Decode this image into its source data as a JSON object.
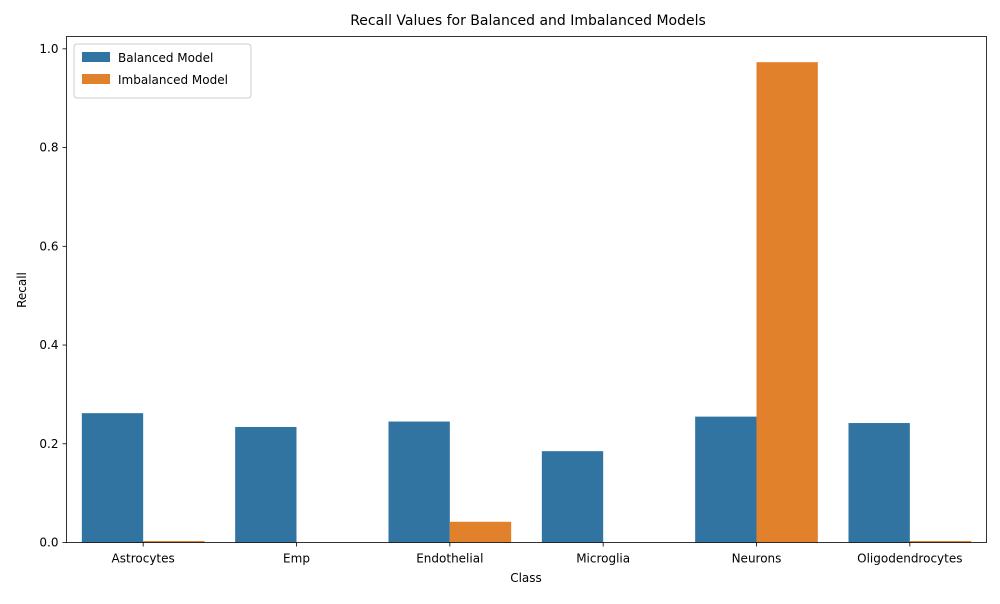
{
  "chart_data": {
    "type": "bar",
    "title": "Recall Values for Balanced and Imbalanced Models",
    "xlabel": "Class",
    "ylabel": "Recall",
    "categories": [
      "Astrocytes",
      "Emp",
      "Endothelial",
      "Microglia",
      "Neurons",
      "Oligodendrocytes"
    ],
    "series": [
      {
        "name": "Balanced Model",
        "color": "#3274a1",
        "values": [
          0.262,
          0.234,
          0.245,
          0.185,
          0.255,
          0.242
        ]
      },
      {
        "name": "Imbalanced Model",
        "color": "#e1812c",
        "values": [
          0.003,
          0.0,
          0.042,
          0.0,
          0.973,
          0.003
        ]
      }
    ],
    "ylim": [
      0,
      1.025
    ],
    "yticks": [
      "0.0",
      "0.2",
      "0.4",
      "0.6",
      "0.8",
      "1.0"
    ],
    "grid": false,
    "legend_position": "top-left"
  }
}
